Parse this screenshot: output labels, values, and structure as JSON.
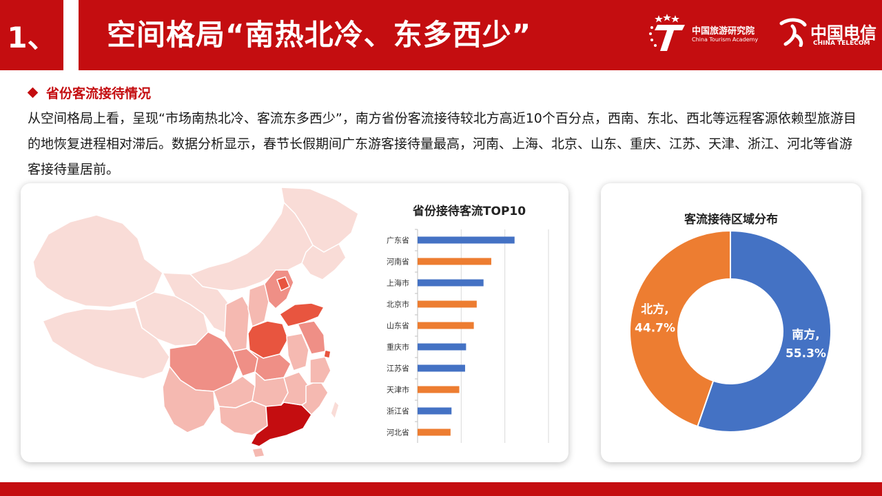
{
  "header": {
    "number": "1、",
    "title": "空间格局“南热北冷、东多西少”",
    "logo_cta_cn": "中国旅游研究院",
    "logo_cta_en": "China Tourism Academy",
    "logo_ct_cn": "中国电信",
    "logo_ct_en": "CHINA TELECOM"
  },
  "section": {
    "heading": "省份客流接待情况",
    "paragraph": "从空间格局上看，呈现“市场南热北冷、客流东多西少”，南方省份客流接待较北方高近10个百分点，西南、东北、西北等远程客源依赖型旅游目的地恢复进程相对滞后。数据分析显示，春节长假期间广东游客接待量最高，河南、上海、北京、山东、重庆、江苏、天津、浙江、河北等省游客接待量居前。"
  },
  "colors": {
    "brand_red": "#c40d10",
    "south_blue": "#4472c4",
    "north_orange": "#ed7d31"
  },
  "chart_data": [
    {
      "type": "bar",
      "orientation": "horizontal",
      "title": "省份接待客流TOP10",
      "categories": [
        "广东省",
        "河南省",
        "上海市",
        "北京市",
        "山东省",
        "重庆市",
        "江苏省",
        "天津市",
        "浙江省",
        "河北省"
      ],
      "values": [
        100,
        76,
        68,
        61,
        58,
        50,
        49,
        43,
        35,
        34
      ],
      "region": [
        "南方",
        "北方",
        "南方",
        "北方",
        "北方",
        "南方",
        "南方",
        "北方",
        "南方",
        "北方"
      ],
      "region_colors": {
        "南方": "#4472c4",
        "北方": "#ed7d31"
      },
      "xlim": [
        0,
        135
      ],
      "grid": true,
      "legend": "none"
    },
    {
      "type": "pie",
      "variant": "donut",
      "title": "客流接待区域分布",
      "slices": [
        {
          "label": "南方",
          "value": 55.3,
          "display": "55.3%",
          "color": "#4472c4"
        },
        {
          "label": "北方",
          "value": 44.7,
          "display": "44.7%",
          "color": "#ed7d31"
        }
      ],
      "legend": "none"
    }
  ],
  "map": {
    "highlight_levels": [
      "#f9dcd7",
      "#f5b9b1",
      "#ef8f86",
      "#e8553f",
      "#c40d10"
    ]
  }
}
